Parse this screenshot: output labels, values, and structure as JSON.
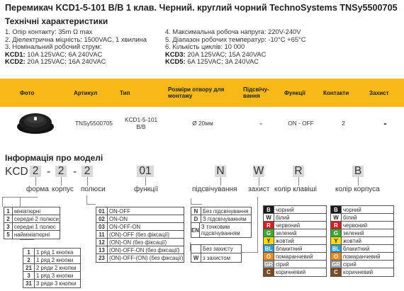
{
  "title": "Перемикач KCD1-5-101 B/B 1 клав. Черний. круглий чорний TechnoSystems TNSy5500705",
  "specs": {
    "heading": "Технічні характеристики",
    "left": [
      "1. Опір контакту: 35m Ω max",
      "2. Діелектрична міцність:  1500VAC, 1 хвилина",
      "3. Номінальний робочий струм:"
    ],
    "kcd1_label": "KCD1:",
    "kcd1_value": " 10A 125VAC; 6A 240VAC",
    "kcd2_label": "KCD2:",
    "kcd2_value": " 20A 125VAC; 16A 240VAC",
    "right": [
      "4. Максимальна робоча напруга: 220V-240V",
      "5. Діапазон робочих температур: -10°C +65°C",
      "6. Кількість циклів: 10 000"
    ],
    "kcd3_label": "KCD3:",
    "kcd3_value": " 20A 125VAC; 15A 240VAC",
    "kcd5_label": "KCD5:",
    "kcd5_value": " 6A 125VAC; 3A 240VAC"
  },
  "table": {
    "headers": [
      "Фото",
      "Артикул",
      "Тип",
      "Розміри отвору для монтажу",
      "Підсвічу-вання",
      "Функції",
      "Контакти",
      "Захист"
    ],
    "row": {
      "article": "TNSy5500705",
      "type": "KCD1-5-101 B/B",
      "size": "Ø 20мм",
      "light": "-",
      "func": "ON - OFF",
      "contacts": "2",
      "protect": "-"
    }
  },
  "model": {
    "heading": "Інформація про моделі",
    "prefix": "KCD",
    "c1": "2",
    "dash1": "-",
    "c2": "2",
    "dash2": "-",
    "c3": "2",
    "c4": "01",
    "c5": "N",
    "c6": "W",
    "c7": "R",
    "c8": "B",
    "labels": {
      "form": "форма",
      "body": "корпус",
      "poles": "полюси",
      "func": "функції",
      "light": "підсвічування",
      "protect": "захист",
      "key_color": "колір клавіші",
      "body_color": "колір корпуса"
    },
    "forms": [
      {
        "k": "1",
        "v": "мініатюрні"
      },
      {
        "k": "2",
        "v": "середні 2 полюси"
      },
      {
        "k": "3",
        "v": "середні 1 полюс"
      },
      {
        "k": "5",
        "v": "наймініатюрні"
      }
    ],
    "poles": [
      {
        "k": "1",
        "v": "1 ряд 1 кнопка"
      },
      {
        "k": "2",
        "v": "1 ряд 2 кнопки"
      },
      {
        "k": "21",
        "v": "2 ряди 2 кнопки"
      },
      {
        "k": "3",
        "v": "1 ряд 3 кнопки"
      },
      {
        "k": "31",
        "v": "3 ряди 3 кнопки"
      }
    ],
    "funcs": [
      {
        "k": "01",
        "v": "ON-OFF"
      },
      {
        "k": "02",
        "v": "ON-ON"
      },
      {
        "k": "03",
        "v": "ON-OFF-ON"
      },
      {
        "k": "11",
        "v": "(ON)-OFF (без фіксації)"
      },
      {
        "k": "12",
        "v": "(ON)-ON (без фіксації)"
      },
      {
        "k": "13",
        "v": "(ON)-OFF-ON (без фіксації)"
      },
      {
        "k": "23",
        "v": "(ON)-OFF-(ON) (без фіксації)"
      }
    ],
    "lights": [
      {
        "k": "N",
        "v": "Без підсвічування"
      },
      {
        "k": "D",
        "v": "З підсвічуванням"
      },
      {
        "k": "EN",
        "v": "З точковим підсвічуванням"
      }
    ],
    "protects": [
      {
        "k": "",
        "v": "Без захисту"
      },
      {
        "k": "W",
        "v": "з захистом"
      }
    ],
    "colors": [
      {
        "k": "B",
        "v": "чорний",
        "c": "#1a1a1a"
      },
      {
        "k": "W",
        "v": "білий",
        "c": "#ffffff"
      },
      {
        "k": "R",
        "v": "червоний",
        "c": "#d21f26"
      },
      {
        "k": "G",
        "v": "зелений",
        "c": "#3aaa35"
      },
      {
        "k": "Y",
        "v": "жовтий",
        "c": "#f5d90a"
      },
      {
        "k": "BL",
        "v": "блакитний",
        "c": "#2b9bd8"
      },
      {
        "k": "O",
        "v": "помаранчевий",
        "c": "#f08a1c"
      },
      {
        "k": "GR",
        "v": "сірий",
        "c": "#9a9a9a"
      },
      {
        "k": "C",
        "v": "коричневий",
        "c": "#7a4a22"
      }
    ]
  }
}
